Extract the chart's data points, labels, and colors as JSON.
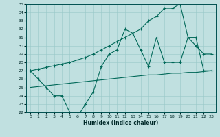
{
  "xlabel": "Humidex (Indice chaleur)",
  "bg_color": "#c0e0e0",
  "line_color": "#006858",
  "grid_color": "#98c8c8",
  "ylim": [
    22,
    35
  ],
  "x": [
    0,
    1,
    2,
    3,
    4,
    5,
    6,
    7,
    8,
    9,
    10,
    11,
    12,
    13,
    14,
    15,
    16,
    17,
    18,
    19,
    20,
    21,
    22,
    23
  ],
  "y_zigzag": [
    27,
    26,
    25,
    24,
    24,
    22,
    21.5,
    23,
    24.5,
    27.5,
    29,
    29.5,
    32,
    31.5,
    29.5,
    27.5,
    31,
    28,
    28,
    28,
    31,
    30,
    29,
    29
  ],
  "y_upper": [
    27,
    27.2,
    27.4,
    27.6,
    27.8,
    28,
    28.3,
    28.6,
    29,
    29.5,
    30,
    30.5,
    31,
    31.5,
    32,
    33,
    33.5,
    34.5,
    34.5,
    35,
    31,
    31,
    27,
    27
  ],
  "y_lower": [
    25,
    25.1,
    25.2,
    25.3,
    25.4,
    25.5,
    25.6,
    25.7,
    25.8,
    25.9,
    26.0,
    26.1,
    26.2,
    26.3,
    26.4,
    26.5,
    26.5,
    26.6,
    26.7,
    26.7,
    26.8,
    26.8,
    26.9,
    27.0
  ]
}
